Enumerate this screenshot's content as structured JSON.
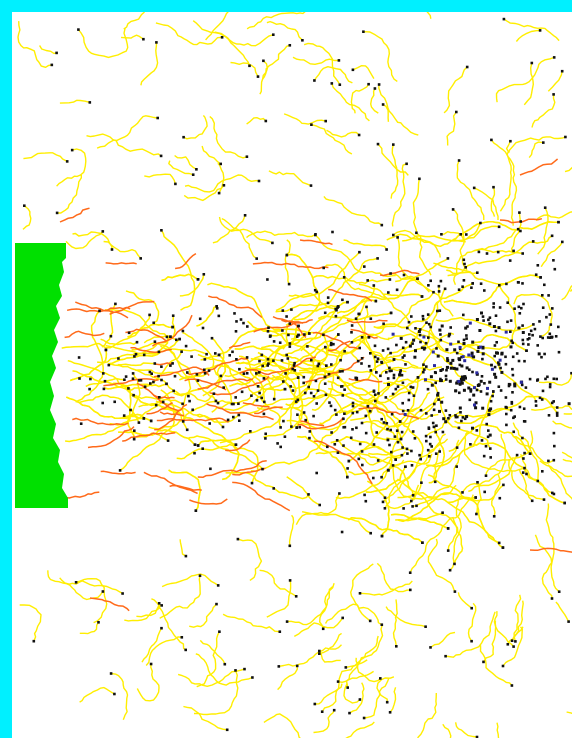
{
  "colors": {
    "background": "#ffffff",
    "border": "#00f0ff",
    "source_block": "#00e000",
    "trail_primary": "#ffee00",
    "trail_secondary": "#ff6a1a",
    "particle": "#111111",
    "dense_core": "#2a2aa0"
  },
  "simulation": {
    "visible_text": "",
    "trail_count_approx": 420,
    "particle_count_approx": 700,
    "source_side": "left",
    "flow_direction": "right"
  }
}
